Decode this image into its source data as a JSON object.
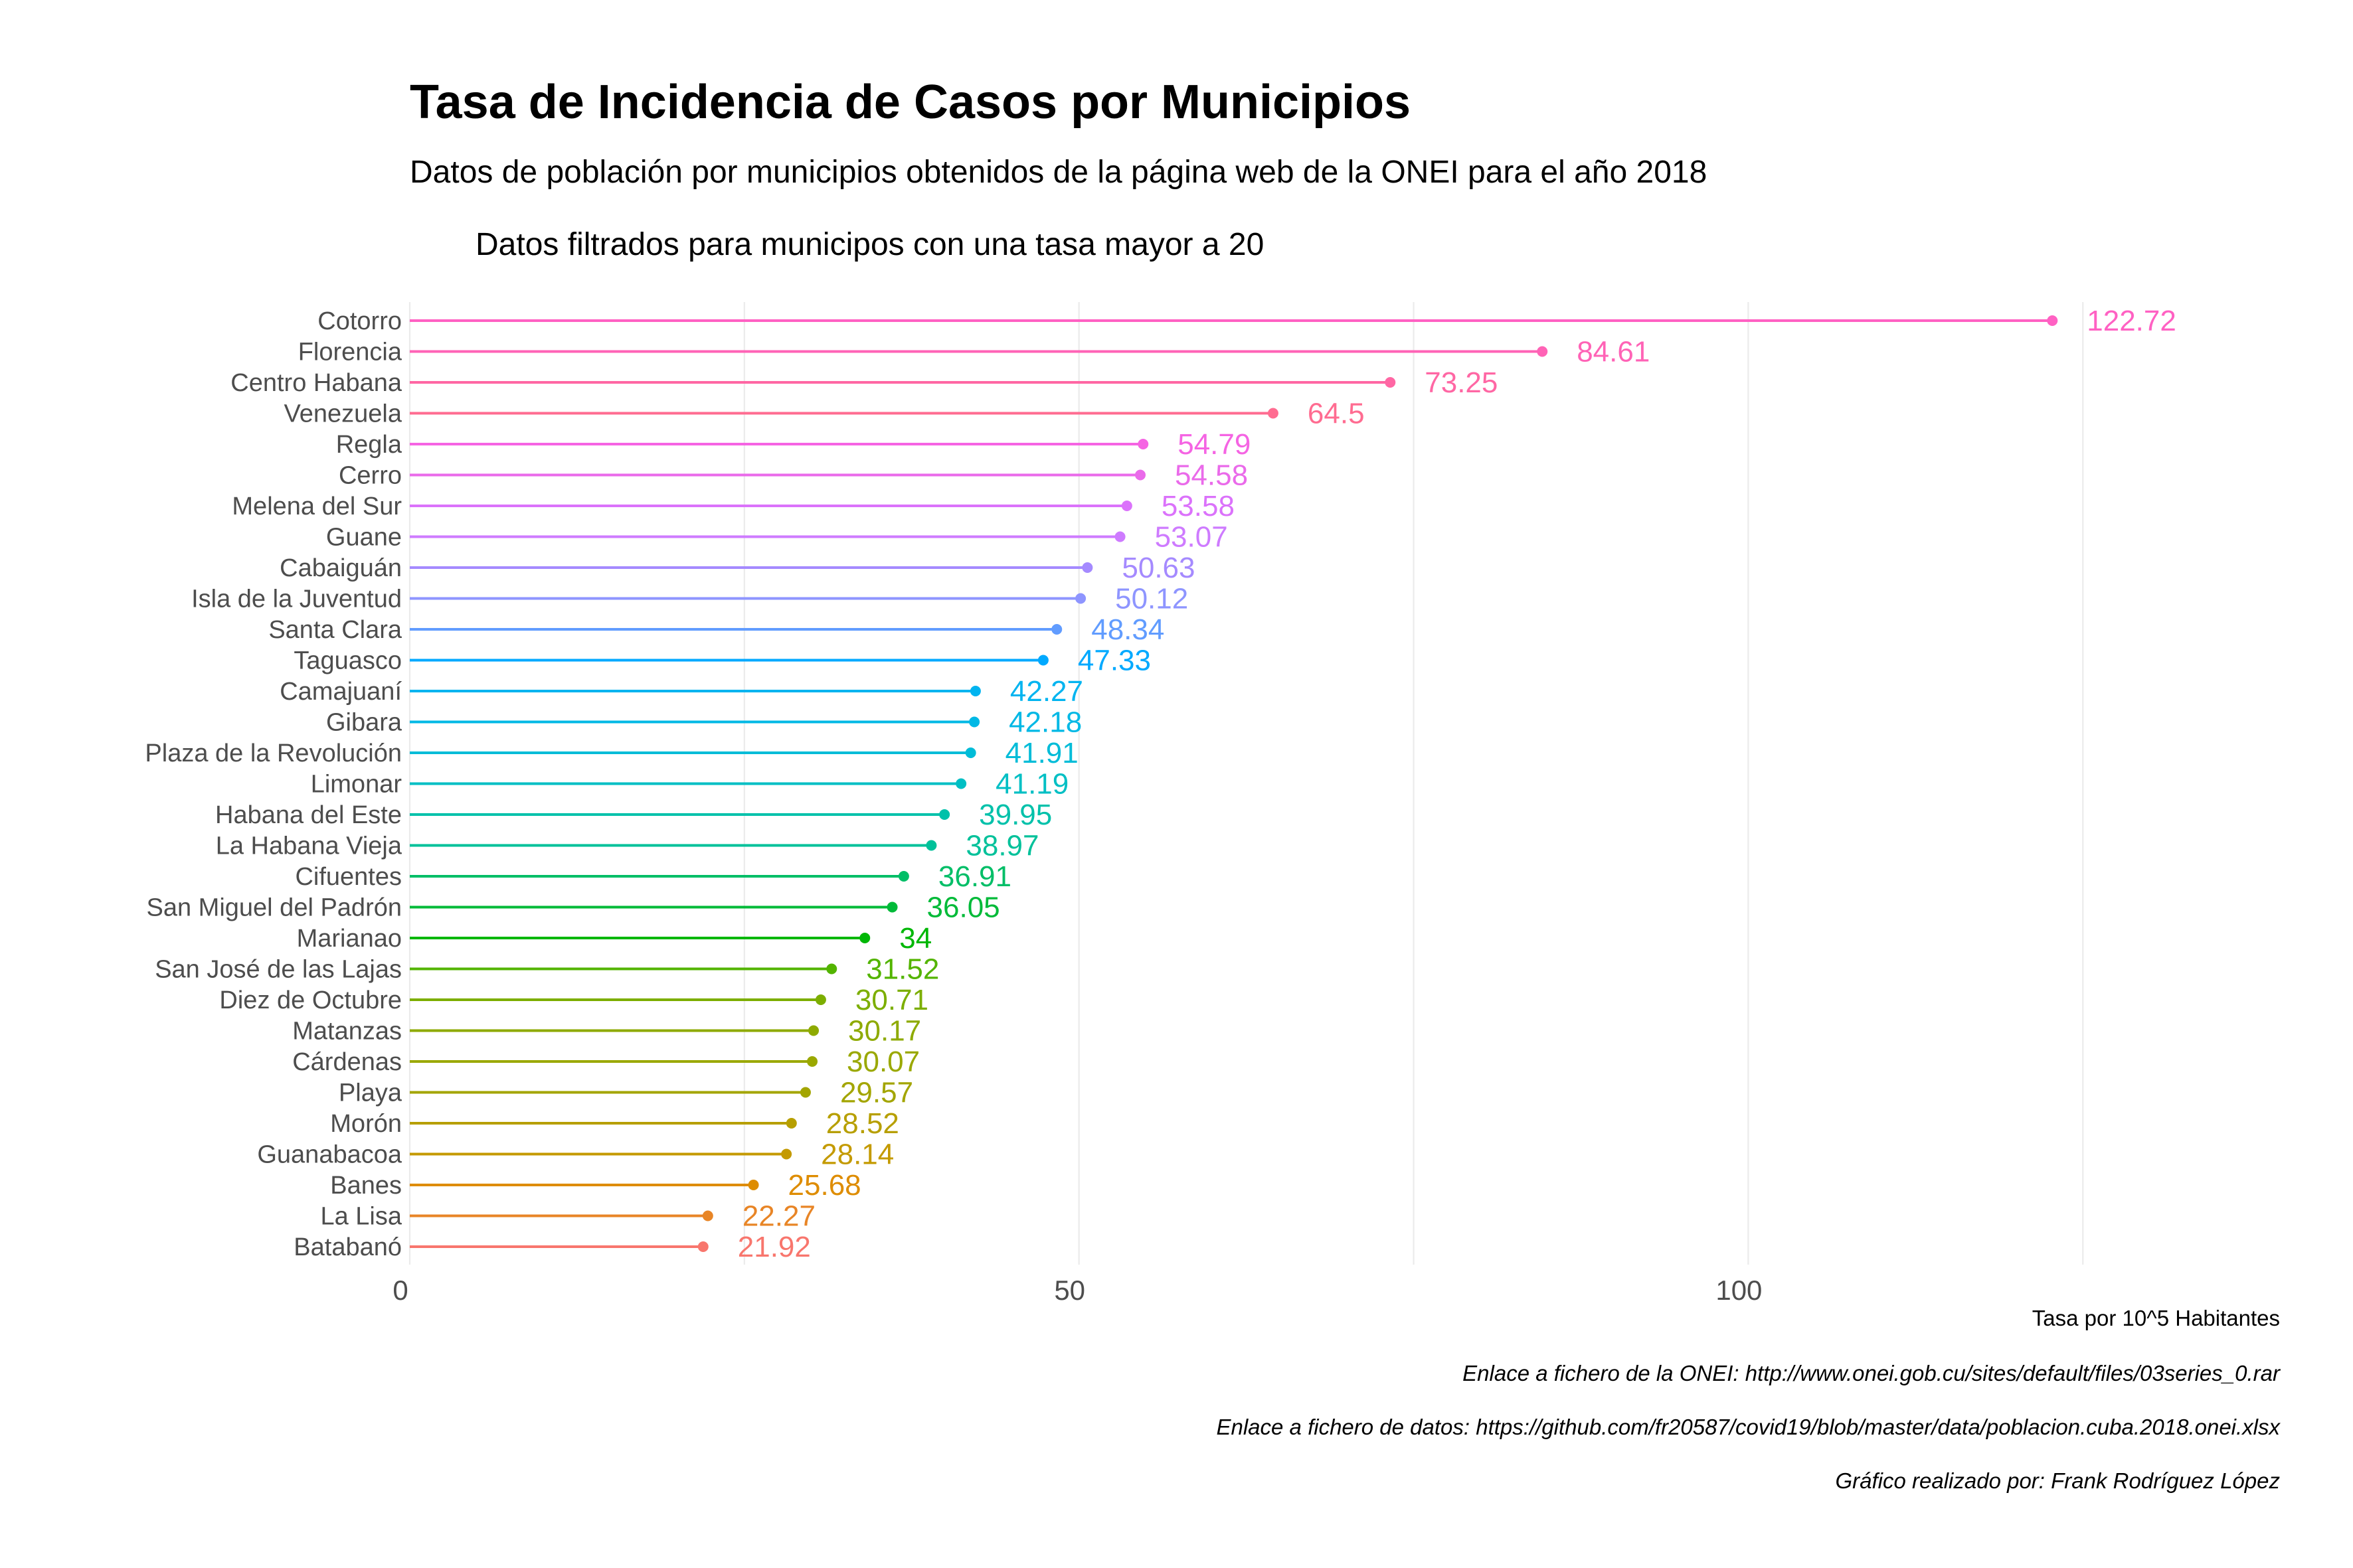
{
  "chart_data": {
    "type": "lollipop",
    "title": "Tasa de Incidencia de Casos por Municipios",
    "subtitle": "Datos de población por municipios obtenidos de la página web de la ONEI para el año 2018",
    "subtitle2": "Datos filtrados para municipos con una tasa mayor a 20",
    "xlabel": "Tasa por 10^5 Habitantes",
    "ylabel": "",
    "xlim": [
      0,
      130
    ],
    "x_ticks": [
      0,
      50,
      100
    ],
    "grid": true,
    "legend": "none",
    "captions": [
      "Enlace a fichero de la ONEI: http://www.onei.gob.cu/sites/default/files/03series_0.rar",
      "Enlace a fichero de datos: https://github.com/fr20587/covid19/blob/master/data/poblacion.cuba.2018.onei.xlsx",
      "Gráfico realizado por: Frank Rodríguez López"
    ],
    "categories": [
      "Cotorro",
      "Florencia",
      "Centro Habana",
      "Venezuela",
      "Regla",
      "Cerro",
      "Melena del Sur",
      "Guane",
      "Cabaiguán",
      "Isla de la Juventud",
      "Santa Clara",
      "Taguasco",
      "Camajuaní",
      "Gibara",
      "Plaza de la Revolución",
      "Limonar",
      "Habana del Este",
      "La Habana Vieja",
      "Cifuentes",
      "San Miguel del Padrón",
      "Marianao",
      "San José de las Lajas",
      "Diez de Octubre",
      "Matanzas",
      "Cárdenas",
      "Playa",
      "Morón",
      "Guanabacoa",
      "Banes",
      "La Lisa",
      "Batabanó"
    ],
    "values": [
      122.72,
      84.61,
      73.25,
      64.5,
      54.79,
      54.58,
      53.58,
      53.07,
      50.63,
      50.12,
      48.34,
      47.33,
      42.27,
      42.18,
      41.91,
      41.19,
      39.95,
      38.97,
      36.91,
      36.05,
      34,
      31.52,
      30.71,
      30.17,
      30.07,
      29.57,
      28.52,
      28.14,
      25.68,
      22.27,
      21.92
    ],
    "value_labels": [
      "122.72",
      "84.61",
      "73.25",
      "64.5",
      "54.79",
      "54.58",
      "53.58",
      "53.07",
      "50.63",
      "50.12",
      "48.34",
      "47.33",
      "42.27",
      "42.18",
      "41.91",
      "41.19",
      "39.95",
      "38.97",
      "36.91",
      "36.05",
      "34",
      "31.52",
      "30.71",
      "30.17",
      "30.07",
      "29.57",
      "28.52",
      "28.14",
      "25.68",
      "22.27",
      "21.92"
    ],
    "colors": [
      "#FF61C3",
      "#FF63B6",
      "#FF67A4",
      "#FF6C91",
      "#F564E3",
      "#EA6AEA",
      "#DB72FB",
      "#CE7BFF",
      "#A58AFF",
      "#8E95FF",
      "#619CFF",
      "#00A9FF",
      "#00B4F0",
      "#00B8E5",
      "#00BCD8",
      "#00BFC4",
      "#00C1AA",
      "#00C19A",
      "#00BE67",
      "#00BA38",
      "#00B706",
      "#53B400",
      "#7CAE00",
      "#8EAA00",
      "#9AA800",
      "#A3A500",
      "#B79F00",
      "#C49A00",
      "#DE8C00",
      "#E88526",
      "#F8766D"
    ]
  }
}
